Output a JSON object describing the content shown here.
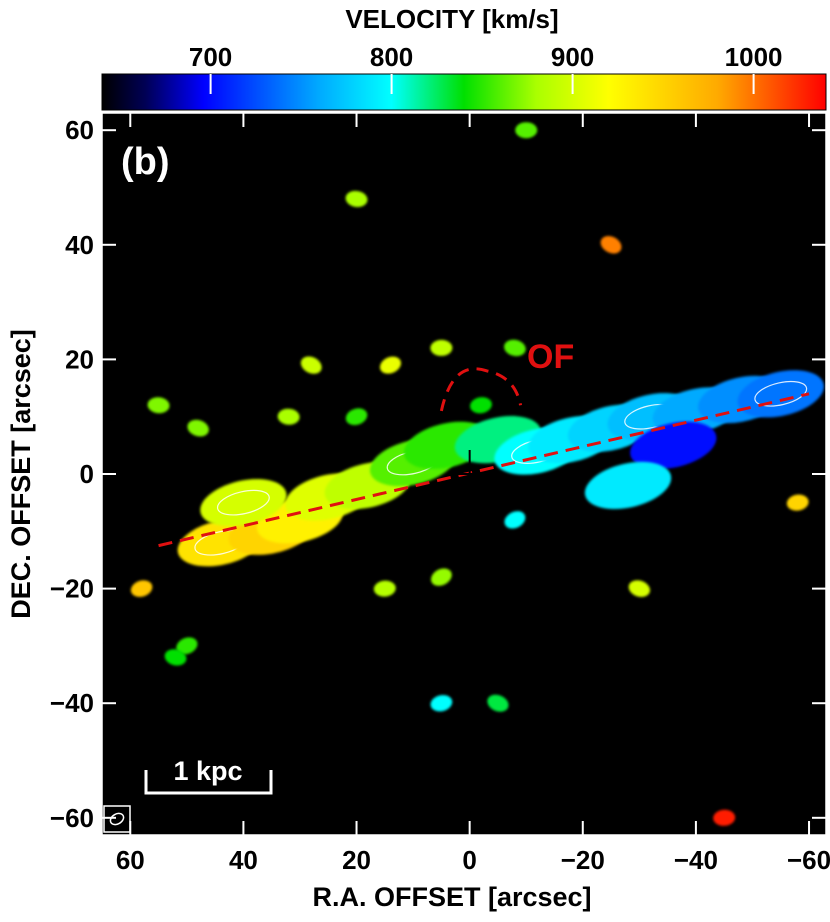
{
  "chart_data": {
    "type": "heatmap",
    "title": "",
    "colorbar": {
      "label": "VELOCITY  [km/s]",
      "ticks": [
        "700",
        "800",
        "900",
        "1000"
      ],
      "tick_values": [
        700,
        800,
        900,
        1000
      ],
      "range": [
        640,
        1040
      ],
      "colormap": [
        "#000000",
        "#0000ff",
        "#00aaff",
        "#00ffff",
        "#00e000",
        "#aaff00",
        "#ffff00",
        "#ffaa00",
        "#ff0000"
      ]
    },
    "xlabel": "R.A. OFFSET  [arcsec]",
    "ylabel": "DEC. OFFSET  [arcsec]",
    "xlim": [
      65,
      -63
    ],
    "ylim": [
      -63,
      63
    ],
    "x_ticks": [
      "60",
      "40",
      "20",
      "0",
      "−20",
      "−40",
      "−60"
    ],
    "x_tick_values": [
      60,
      40,
      20,
      0,
      -20,
      -40,
      -60
    ],
    "y_ticks": [
      "60",
      "40",
      "20",
      "0",
      "−20",
      "−40",
      "−60"
    ],
    "y_tick_values": [
      60,
      40,
      20,
      0,
      -20,
      -40,
      -60
    ],
    "panel_label": "(b)",
    "annotation": "OF",
    "scale_bar": "1 kpc",
    "center_marker": [
      0,
      0
    ],
    "major_axis_line": {
      "x": [
        55,
        -60
      ],
      "y": [
        -12.5,
        14
      ]
    },
    "emission_blobs": [
      {
        "x": 44,
        "y": -12,
        "v": 940
      },
      {
        "x": 35,
        "y": -10,
        "v": 950
      },
      {
        "x": 30,
        "y": -8,
        "v": 930
      },
      {
        "x": 40,
        "y": -5,
        "v": 900
      },
      {
        "x": 25,
        "y": -4,
        "v": 905
      },
      {
        "x": 18,
        "y": -2,
        "v": 890
      },
      {
        "x": 10,
        "y": 2,
        "v": 860
      },
      {
        "x": 4,
        "y": 5,
        "v": 850
      },
      {
        "x": -5,
        "y": 6,
        "v": 820
      },
      {
        "x": -12,
        "y": 4,
        "v": 800
      },
      {
        "x": -18,
        "y": 6,
        "v": 790
      },
      {
        "x": -25,
        "y": 8,
        "v": 780
      },
      {
        "x": -32,
        "y": 10,
        "v": 770
      },
      {
        "x": -40,
        "y": 11,
        "v": 760
      },
      {
        "x": -48,
        "y": 13,
        "v": 750
      },
      {
        "x": -55,
        "y": 14,
        "v": 740
      },
      {
        "x": -36,
        "y": 5,
        "v": 700
      },
      {
        "x": 5,
        "y": 22,
        "v": 890
      },
      {
        "x": 14,
        "y": 19,
        "v": 910
      },
      {
        "x": -8,
        "y": 22,
        "v": 860
      },
      {
        "x": -2,
        "y": 12,
        "v": 840
      },
      {
        "x": 28,
        "y": 19,
        "v": 895
      },
      {
        "x": 32,
        "y": 10,
        "v": 880
      },
      {
        "x": 20,
        "y": 10,
        "v": 850
      },
      {
        "x": 48,
        "y": 8,
        "v": 870
      },
      {
        "x": 15,
        "y": -20,
        "v": 885
      },
      {
        "x": 5,
        "y": -18,
        "v": 875
      },
      {
        "x": 20,
        "y": 48,
        "v": 880
      },
      {
        "x": 5,
        "y": -40,
        "v": 800
      },
      {
        "x": -5,
        "y": -40,
        "v": 830
      },
      {
        "x": -10,
        "y": 60,
        "v": 860
      },
      {
        "x": 50,
        "y": -30,
        "v": 850
      },
      {
        "x": 52,
        "y": -32,
        "v": 840
      },
      {
        "x": -58,
        "y": -5,
        "v": 950
      },
      {
        "x": -25,
        "y": 40,
        "v": 995
      },
      {
        "x": 55,
        "y": 12,
        "v": 870
      },
      {
        "x": 58,
        "y": -20,
        "v": 960
      },
      {
        "x": -30,
        "y": -20,
        "v": 900
      },
      {
        "x": -45,
        "y": -60,
        "v": 1030
      },
      {
        "x": -8,
        "y": -8,
        "v": 800
      },
      {
        "x": -28,
        "y": -2,
        "v": 790
      }
    ]
  }
}
